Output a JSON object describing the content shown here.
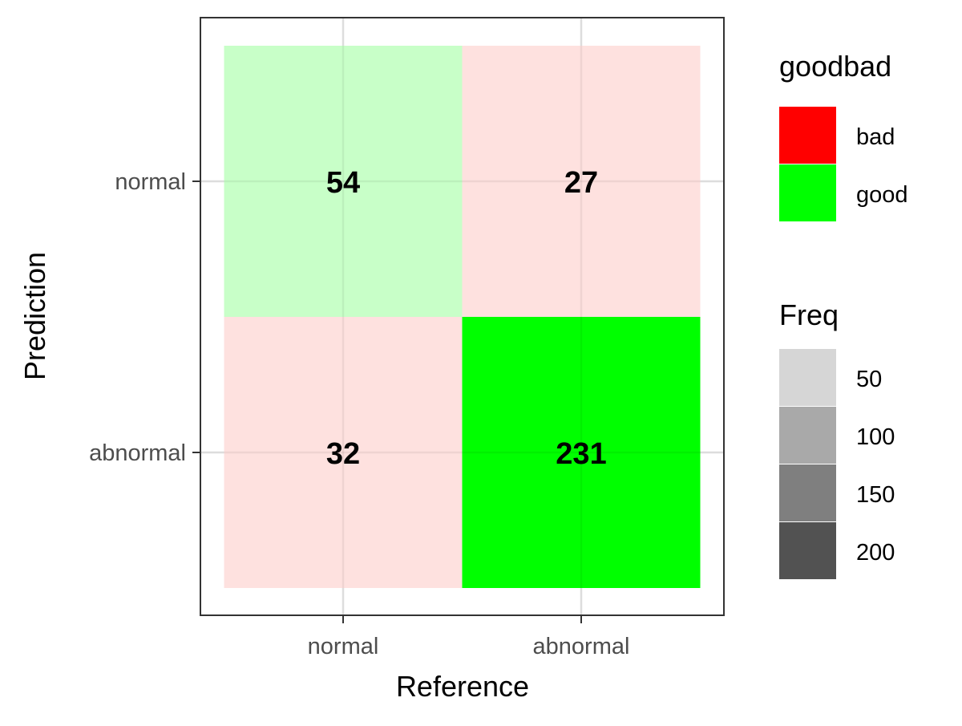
{
  "chart_data": {
    "type": "heatmap",
    "title": "",
    "xlabel": "Reference",
    "ylabel": "Prediction",
    "x_categories": [
      "normal",
      "abnormal"
    ],
    "y_categories": [
      "normal",
      "abnormal"
    ],
    "cells": [
      {
        "reference": "normal",
        "prediction": "normal",
        "freq": 54,
        "goodbad": "good",
        "color": "#C8FFC8"
      },
      {
        "reference": "abnormal",
        "prediction": "normal",
        "freq": 27,
        "goodbad": "bad",
        "color": "#FEE1DF"
      },
      {
        "reference": "normal",
        "prediction": "abnormal",
        "freq": 32,
        "goodbad": "bad",
        "color": "#FEE1DF"
      },
      {
        "reference": "abnormal",
        "prediction": "abnormal",
        "freq": 231,
        "goodbad": "good",
        "color": "#00FF00"
      }
    ],
    "grid": true,
    "legend_placement": "right",
    "legends": [
      {
        "title": "goodbad",
        "entries": [
          {
            "label": "bad",
            "color": "#FF0000"
          },
          {
            "label": "good",
            "color": "#00FF00"
          }
        ]
      },
      {
        "title": "Freq",
        "entries": [
          {
            "label": "50",
            "color": "#D6D6D6"
          },
          {
            "label": "100",
            "color": "#A9A9A9"
          },
          {
            "label": "150",
            "color": "#7F7F7F"
          },
          {
            "label": "200",
            "color": "#525252"
          }
        ]
      }
    ]
  }
}
